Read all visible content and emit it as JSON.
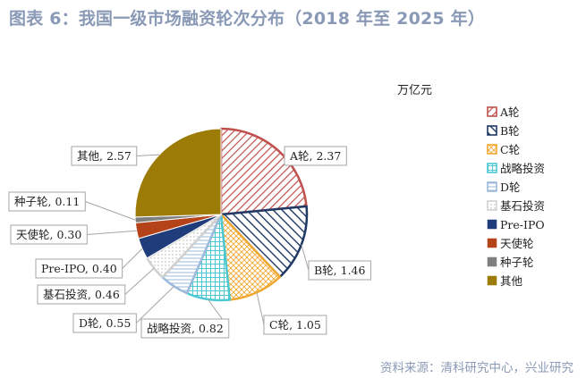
{
  "header": {
    "title": "图表 6：我国一级市场融资轮次分布（2018 年至 2025 年）"
  },
  "footer": {
    "source": "资料来源：清科研究中心，兴业研究"
  },
  "chart_data": {
    "type": "pie",
    "unit": "万亿元",
    "legend_position": "right",
    "slices": [
      {
        "name": "A轮",
        "value": 2.37,
        "label": "A轮, 2.37",
        "color": "#c0504d",
        "pattern": "diag"
      },
      {
        "name": "B轮",
        "value": 1.46,
        "label": "B轮, 1.46",
        "color": "#1f3864",
        "pattern": "diag"
      },
      {
        "name": "C轮",
        "value": 1.05,
        "label": "C轮, 1.05",
        "color": "#f0a830",
        "pattern": "cross"
      },
      {
        "name": "战略投资",
        "value": 0.82,
        "label": "战略投资, 0.82",
        "color": "#4bc8d2",
        "pattern": "grid"
      },
      {
        "name": "D轮",
        "value": 0.55,
        "label": "D轮, 0.55",
        "color": "#9bbadb",
        "pattern": "hline"
      },
      {
        "name": "基石投资",
        "value": 0.46,
        "label": "基石投资, 0.46",
        "color": "#d0d0d0",
        "pattern": "dots"
      },
      {
        "name": "Pre-IPO",
        "value": 0.4,
        "label": "Pre-IPO, 0.40",
        "color": "#1f3d7a",
        "pattern": "solid"
      },
      {
        "name": "天使轮",
        "value": 0.3,
        "label": "天使轮, 0.30",
        "color": "#b5431a",
        "pattern": "solid"
      },
      {
        "name": "种子轮",
        "value": 0.11,
        "label": "种子轮, 0.11",
        "color": "#7f7f7f",
        "pattern": "solid"
      },
      {
        "name": "其他",
        "value": 2.57,
        "label": "其他, 2.57",
        "color": "#9c7b06",
        "pattern": "solid"
      }
    ]
  }
}
